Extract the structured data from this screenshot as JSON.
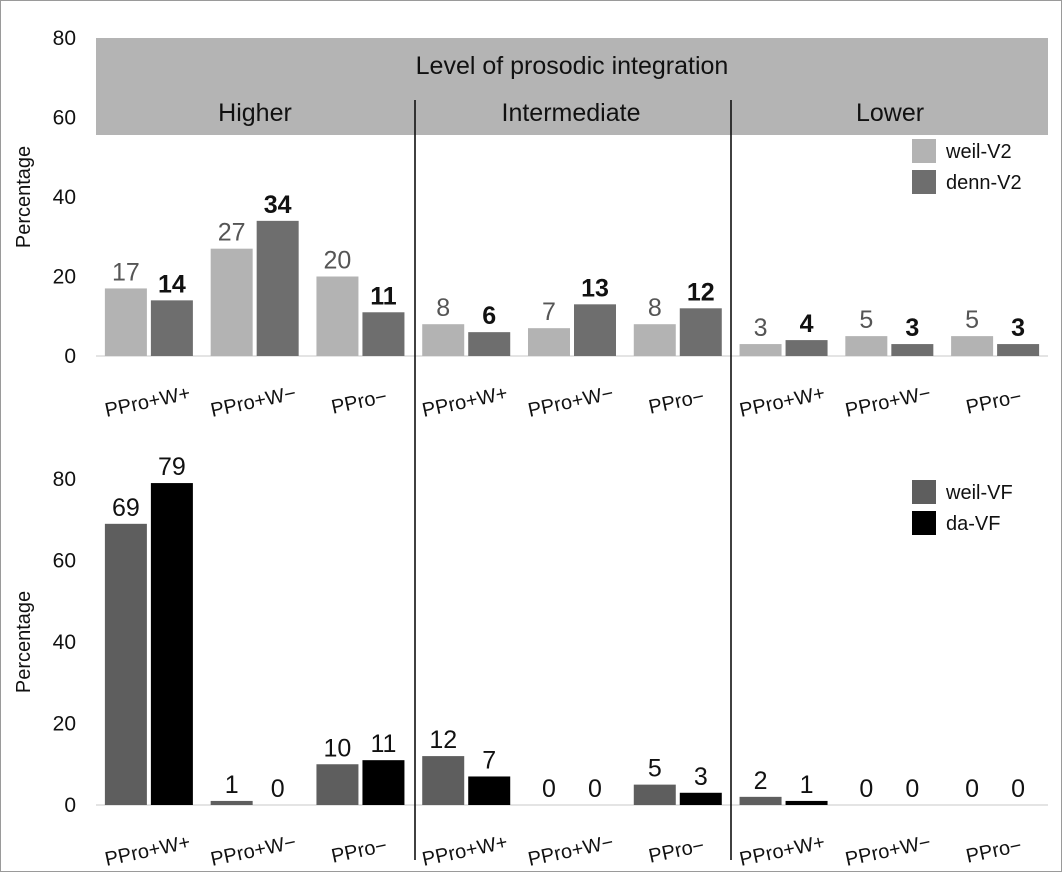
{
  "chart_data": [
    {
      "type": "bar",
      "banner_title": "Level of prosodic integration",
      "levels": [
        "Higher",
        "Intermediate",
        "Lower"
      ],
      "categories": [
        "PPro+W+",
        "PPro+W−",
        "PPro−",
        "PPro+W+",
        "PPro+W−",
        "PPro−",
        "PPro+W+",
        "PPro+W−",
        "PPro−"
      ],
      "series": [
        {
          "name": "weil-V2",
          "values": [
            17,
            27,
            20,
            8,
            7,
            8,
            3,
            5,
            5
          ]
        },
        {
          "name": "denn-V2",
          "values": [
            14,
            34,
            11,
            6,
            13,
            12,
            4,
            3,
            3
          ]
        }
      ],
      "colors": [
        "#b3b3b3",
        "#6e6e6e"
      ],
      "label_colors": [
        "#555555",
        "#111111"
      ],
      "ylabel": "Percentage",
      "ylim": [
        0,
        80
      ],
      "yticks": [
        0,
        20,
        40,
        60,
        80
      ],
      "legend_position": "top-right"
    },
    {
      "type": "bar",
      "categories": [
        "PPro+W+",
        "PPro+W−",
        "PPro−",
        "PPro+W+",
        "PPro+W−",
        "PPro−",
        "PPro+W+",
        "PPro+W−",
        "PPro−"
      ],
      "series": [
        {
          "name": "weil-VF",
          "values": [
            69,
            1,
            10,
            12,
            0,
            5,
            2,
            0,
            0
          ]
        },
        {
          "name": "da-VF",
          "values": [
            79,
            0,
            11,
            7,
            0,
            3,
            1,
            0,
            0
          ]
        }
      ],
      "colors": [
        "#5e5e5e",
        "#000000"
      ],
      "label_colors": [
        "#111111",
        "#111111"
      ],
      "ylabel": "Percentage",
      "ylim": [
        0,
        80
      ],
      "yticks": [
        0,
        20,
        40,
        60,
        80
      ],
      "legend_position": "top-right"
    }
  ]
}
